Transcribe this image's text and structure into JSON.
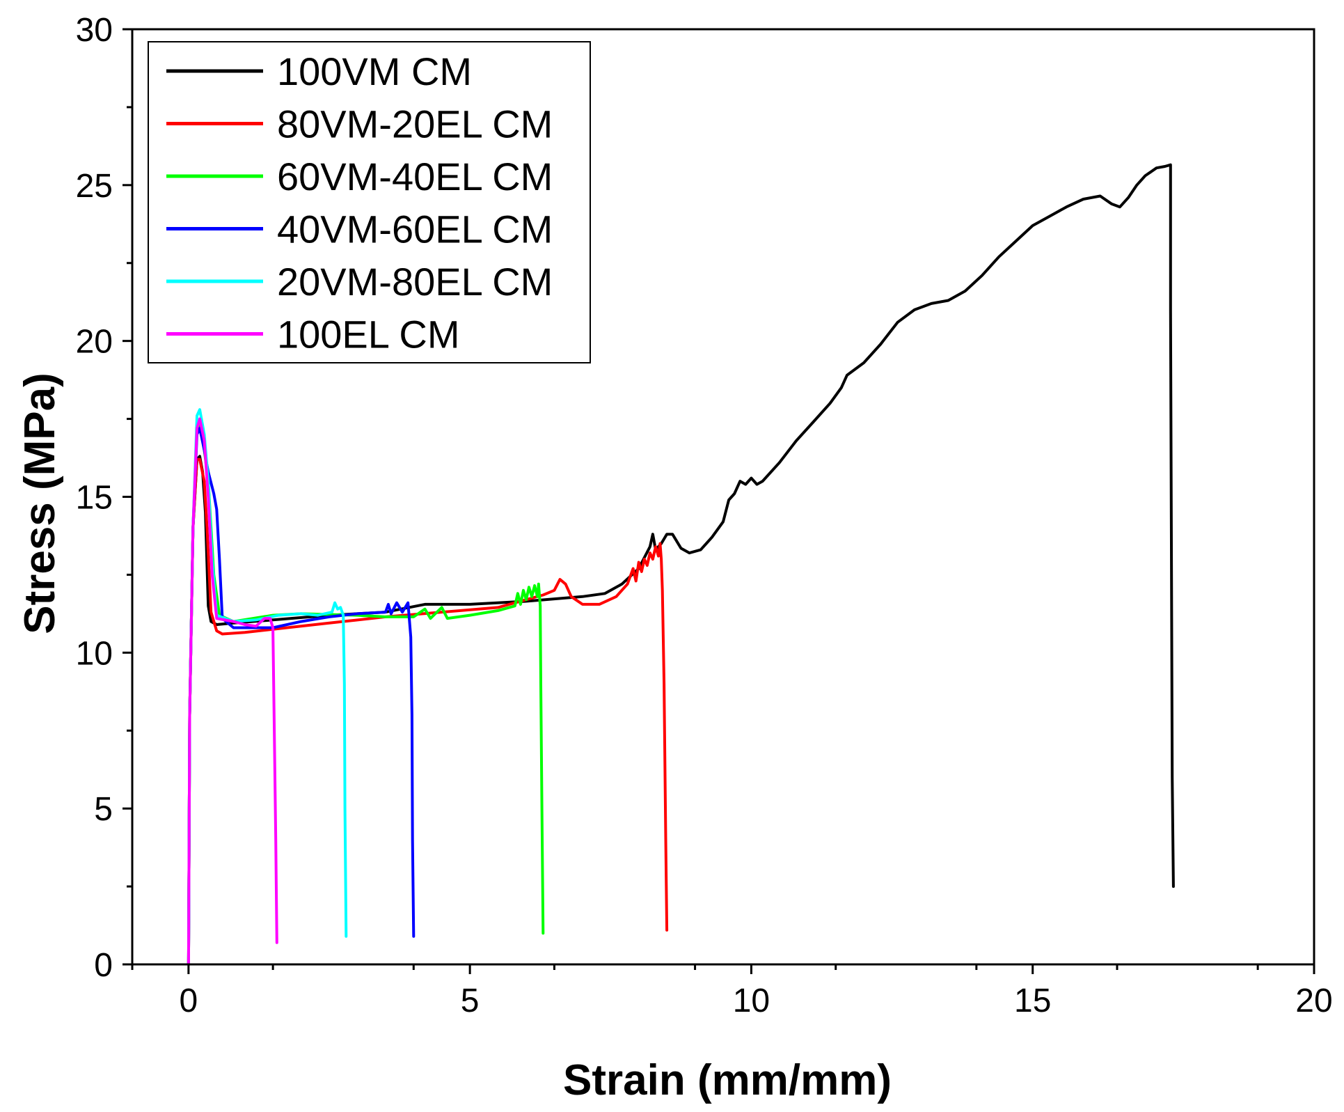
{
  "chart_data": {
    "type": "line",
    "title": "",
    "xlabel": "Strain (mm/mm)",
    "ylabel": "Stress (MPa)",
    "xlim": [
      -1,
      20
    ],
    "ylim": [
      0,
      30
    ],
    "x_ticks": [
      0,
      5,
      10,
      15,
      20
    ],
    "x_tick_labels": [
      "0",
      "5",
      "10",
      "15",
      "20"
    ],
    "y_ticks": [
      0,
      5,
      10,
      15,
      20,
      25,
      30
    ],
    "y_tick_labels": [
      "0",
      "5",
      "10",
      "15",
      "20",
      "25",
      "30"
    ],
    "x_minor_step": 2.5,
    "y_minor_step": 2.5,
    "grid": false,
    "legend_position": "top-left",
    "series": [
      {
        "name": "100VM CM",
        "color": "#000000",
        "points": [
          [
            0,
            0
          ],
          [
            0.02,
            8
          ],
          [
            0.08,
            14
          ],
          [
            0.15,
            16.2
          ],
          [
            0.2,
            16.3
          ],
          [
            0.25,
            15.8
          ],
          [
            0.3,
            14.5
          ],
          [
            0.35,
            11.5
          ],
          [
            0.4,
            11.0
          ],
          [
            0.5,
            10.9
          ],
          [
            0.8,
            10.95
          ],
          [
            1.5,
            11.05
          ],
          [
            2.5,
            11.2
          ],
          [
            3.5,
            11.3
          ],
          [
            4.2,
            11.55
          ],
          [
            5,
            11.55
          ],
          [
            6,
            11.65
          ],
          [
            7,
            11.8
          ],
          [
            7.4,
            11.9
          ],
          [
            7.7,
            12.2
          ],
          [
            8.0,
            12.7
          ],
          [
            8.2,
            13.4
          ],
          [
            8.25,
            13.8
          ],
          [
            8.3,
            13.3
          ],
          [
            8.4,
            13.5
          ],
          [
            8.5,
            13.8
          ],
          [
            8.6,
            13.8
          ],
          [
            8.75,
            13.35
          ],
          [
            8.9,
            13.2
          ],
          [
            9.1,
            13.3
          ],
          [
            9.3,
            13.7
          ],
          [
            9.5,
            14.2
          ],
          [
            9.6,
            14.9
          ],
          [
            9.7,
            15.1
          ],
          [
            9.8,
            15.5
          ],
          [
            9.9,
            15.4
          ],
          [
            10,
            15.6
          ],
          [
            10.1,
            15.4
          ],
          [
            10.2,
            15.5
          ],
          [
            10.5,
            16.1
          ],
          [
            10.8,
            16.8
          ],
          [
            11.1,
            17.4
          ],
          [
            11.4,
            18.0
          ],
          [
            11.6,
            18.5
          ],
          [
            11.7,
            18.9
          ],
          [
            12.0,
            19.3
          ],
          [
            12.3,
            19.9
          ],
          [
            12.6,
            20.6
          ],
          [
            12.9,
            21.0
          ],
          [
            13.2,
            21.2
          ],
          [
            13.5,
            21.3
          ],
          [
            13.8,
            21.6
          ],
          [
            14.1,
            22.1
          ],
          [
            14.4,
            22.7
          ],
          [
            14.7,
            23.2
          ],
          [
            15.0,
            23.7
          ],
          [
            15.3,
            24.0
          ],
          [
            15.6,
            24.3
          ],
          [
            15.9,
            24.55
          ],
          [
            16.2,
            24.65
          ],
          [
            16.4,
            24.4
          ],
          [
            16.55,
            24.3
          ],
          [
            16.7,
            24.6
          ],
          [
            16.85,
            25.0
          ],
          [
            17.0,
            25.3
          ],
          [
            17.2,
            25.55
          ],
          [
            17.35,
            25.6
          ],
          [
            17.45,
            25.65
          ],
          [
            17.45,
            21.0
          ],
          [
            17.48,
            6
          ],
          [
            17.5,
            2.5
          ]
        ]
      },
      {
        "name": "80VM-20EL CM",
        "color": "#ff0000",
        "points": [
          [
            0,
            0
          ],
          [
            0.02,
            8
          ],
          [
            0.08,
            14
          ],
          [
            0.15,
            16.2
          ],
          [
            0.2,
            16.2
          ],
          [
            0.28,
            15.5
          ],
          [
            0.33,
            14
          ],
          [
            0.4,
            11.3
          ],
          [
            0.5,
            10.7
          ],
          [
            0.6,
            10.6
          ],
          [
            1.0,
            10.65
          ],
          [
            1.5,
            10.75
          ],
          [
            2.5,
            10.95
          ],
          [
            3.5,
            11.15
          ],
          [
            4.5,
            11.3
          ],
          [
            5.5,
            11.45
          ],
          [
            6.0,
            11.7
          ],
          [
            6.3,
            11.85
          ],
          [
            6.5,
            12.0
          ],
          [
            6.6,
            12.35
          ],
          [
            6.7,
            12.2
          ],
          [
            6.8,
            11.8
          ],
          [
            7.0,
            11.55
          ],
          [
            7.3,
            11.55
          ],
          [
            7.6,
            11.8
          ],
          [
            7.8,
            12.2
          ],
          [
            7.9,
            12.7
          ],
          [
            7.95,
            12.3
          ],
          [
            8.0,
            12.9
          ],
          [
            8.05,
            12.6
          ],
          [
            8.1,
            13.0
          ],
          [
            8.15,
            12.8
          ],
          [
            8.2,
            13.2
          ],
          [
            8.25,
            13.0
          ],
          [
            8.3,
            13.4
          ],
          [
            8.35,
            13.1
          ],
          [
            8.38,
            13.5
          ],
          [
            8.4,
            13.0
          ],
          [
            8.42,
            12.0
          ],
          [
            8.45,
            9
          ],
          [
            8.48,
            4
          ],
          [
            8.5,
            1.1
          ]
        ]
      },
      {
        "name": "60VM-40EL CM",
        "color": "#00ff00",
        "points": [
          [
            0,
            0
          ],
          [
            0.02,
            8
          ],
          [
            0.08,
            14
          ],
          [
            0.15,
            17.2
          ],
          [
            0.2,
            17.3
          ],
          [
            0.28,
            16.5
          ],
          [
            0.35,
            15.5
          ],
          [
            0.45,
            12.5
          ],
          [
            0.55,
            11.2
          ],
          [
            0.8,
            11.0
          ],
          [
            1.5,
            11.2
          ],
          [
            2.0,
            11.25
          ],
          [
            3.0,
            11.2
          ],
          [
            3.5,
            11.15
          ],
          [
            4.0,
            11.15
          ],
          [
            4.2,
            11.4
          ],
          [
            4.3,
            11.1
          ],
          [
            4.5,
            11.45
          ],
          [
            4.6,
            11.1
          ],
          [
            5.0,
            11.2
          ],
          [
            5.5,
            11.35
          ],
          [
            5.8,
            11.5
          ],
          [
            5.85,
            11.9
          ],
          [
            5.9,
            11.55
          ],
          [
            5.95,
            12.0
          ],
          [
            6.0,
            11.7
          ],
          [
            6.05,
            12.1
          ],
          [
            6.1,
            11.8
          ],
          [
            6.15,
            12.15
          ],
          [
            6.2,
            11.8
          ],
          [
            6.22,
            12.2
          ],
          [
            6.25,
            11.5
          ],
          [
            6.26,
            9
          ],
          [
            6.28,
            5
          ],
          [
            6.3,
            1.0
          ]
        ]
      },
      {
        "name": "40VM-60EL CM",
        "color": "#0000ff",
        "points": [
          [
            0,
            0
          ],
          [
            0.02,
            8
          ],
          [
            0.08,
            14
          ],
          [
            0.15,
            17.0
          ],
          [
            0.2,
            17.2
          ],
          [
            0.28,
            16.5
          ],
          [
            0.35,
            15.8
          ],
          [
            0.45,
            15.1
          ],
          [
            0.5,
            14.6
          ],
          [
            0.55,
            13
          ],
          [
            0.6,
            11.1
          ],
          [
            0.8,
            10.8
          ],
          [
            1.5,
            10.8
          ],
          [
            2.0,
            11.0
          ],
          [
            2.5,
            11.15
          ],
          [
            3.0,
            11.25
          ],
          [
            3.5,
            11.3
          ],
          [
            3.55,
            11.55
          ],
          [
            3.6,
            11.25
          ],
          [
            3.7,
            11.6
          ],
          [
            3.8,
            11.3
          ],
          [
            3.9,
            11.6
          ],
          [
            3.95,
            10.5
          ],
          [
            3.97,
            8
          ],
          [
            3.98,
            4
          ],
          [
            4.0,
            0.9
          ]
        ]
      },
      {
        "name": "20VM-80EL CM",
        "color": "#00ffff",
        "points": [
          [
            0,
            0
          ],
          [
            0.02,
            8
          ],
          [
            0.08,
            14
          ],
          [
            0.15,
            17.6
          ],
          [
            0.2,
            17.8
          ],
          [
            0.28,
            17.0
          ],
          [
            0.35,
            15.5
          ],
          [
            0.42,
            13
          ],
          [
            0.5,
            11.2
          ],
          [
            0.8,
            11.0
          ],
          [
            1.2,
            11.05
          ],
          [
            1.6,
            11.2
          ],
          [
            2.0,
            11.25
          ],
          [
            2.3,
            11.2
          ],
          [
            2.55,
            11.3
          ],
          [
            2.6,
            11.6
          ],
          [
            2.65,
            11.4
          ],
          [
            2.7,
            11.45
          ],
          [
            2.75,
            11.2
          ],
          [
            2.77,
            9
          ],
          [
            2.78,
            5
          ],
          [
            2.8,
            0.9
          ]
        ]
      },
      {
        "name": "100EL CM",
        "color": "#ff00ff",
        "points": [
          [
            0,
            0
          ],
          [
            0.02,
            8
          ],
          [
            0.08,
            14
          ],
          [
            0.15,
            17.2
          ],
          [
            0.2,
            17.5
          ],
          [
            0.28,
            16.8
          ],
          [
            0.35,
            15
          ],
          [
            0.42,
            12.5
          ],
          [
            0.5,
            11.1
          ],
          [
            0.8,
            11.0
          ],
          [
            1.0,
            10.9
          ],
          [
            1.2,
            10.85
          ],
          [
            1.35,
            11.1
          ],
          [
            1.45,
            11.1
          ],
          [
            1.5,
            10.8
          ],
          [
            1.52,
            8
          ],
          [
            1.55,
            4
          ],
          [
            1.57,
            0.7
          ]
        ]
      }
    ]
  }
}
